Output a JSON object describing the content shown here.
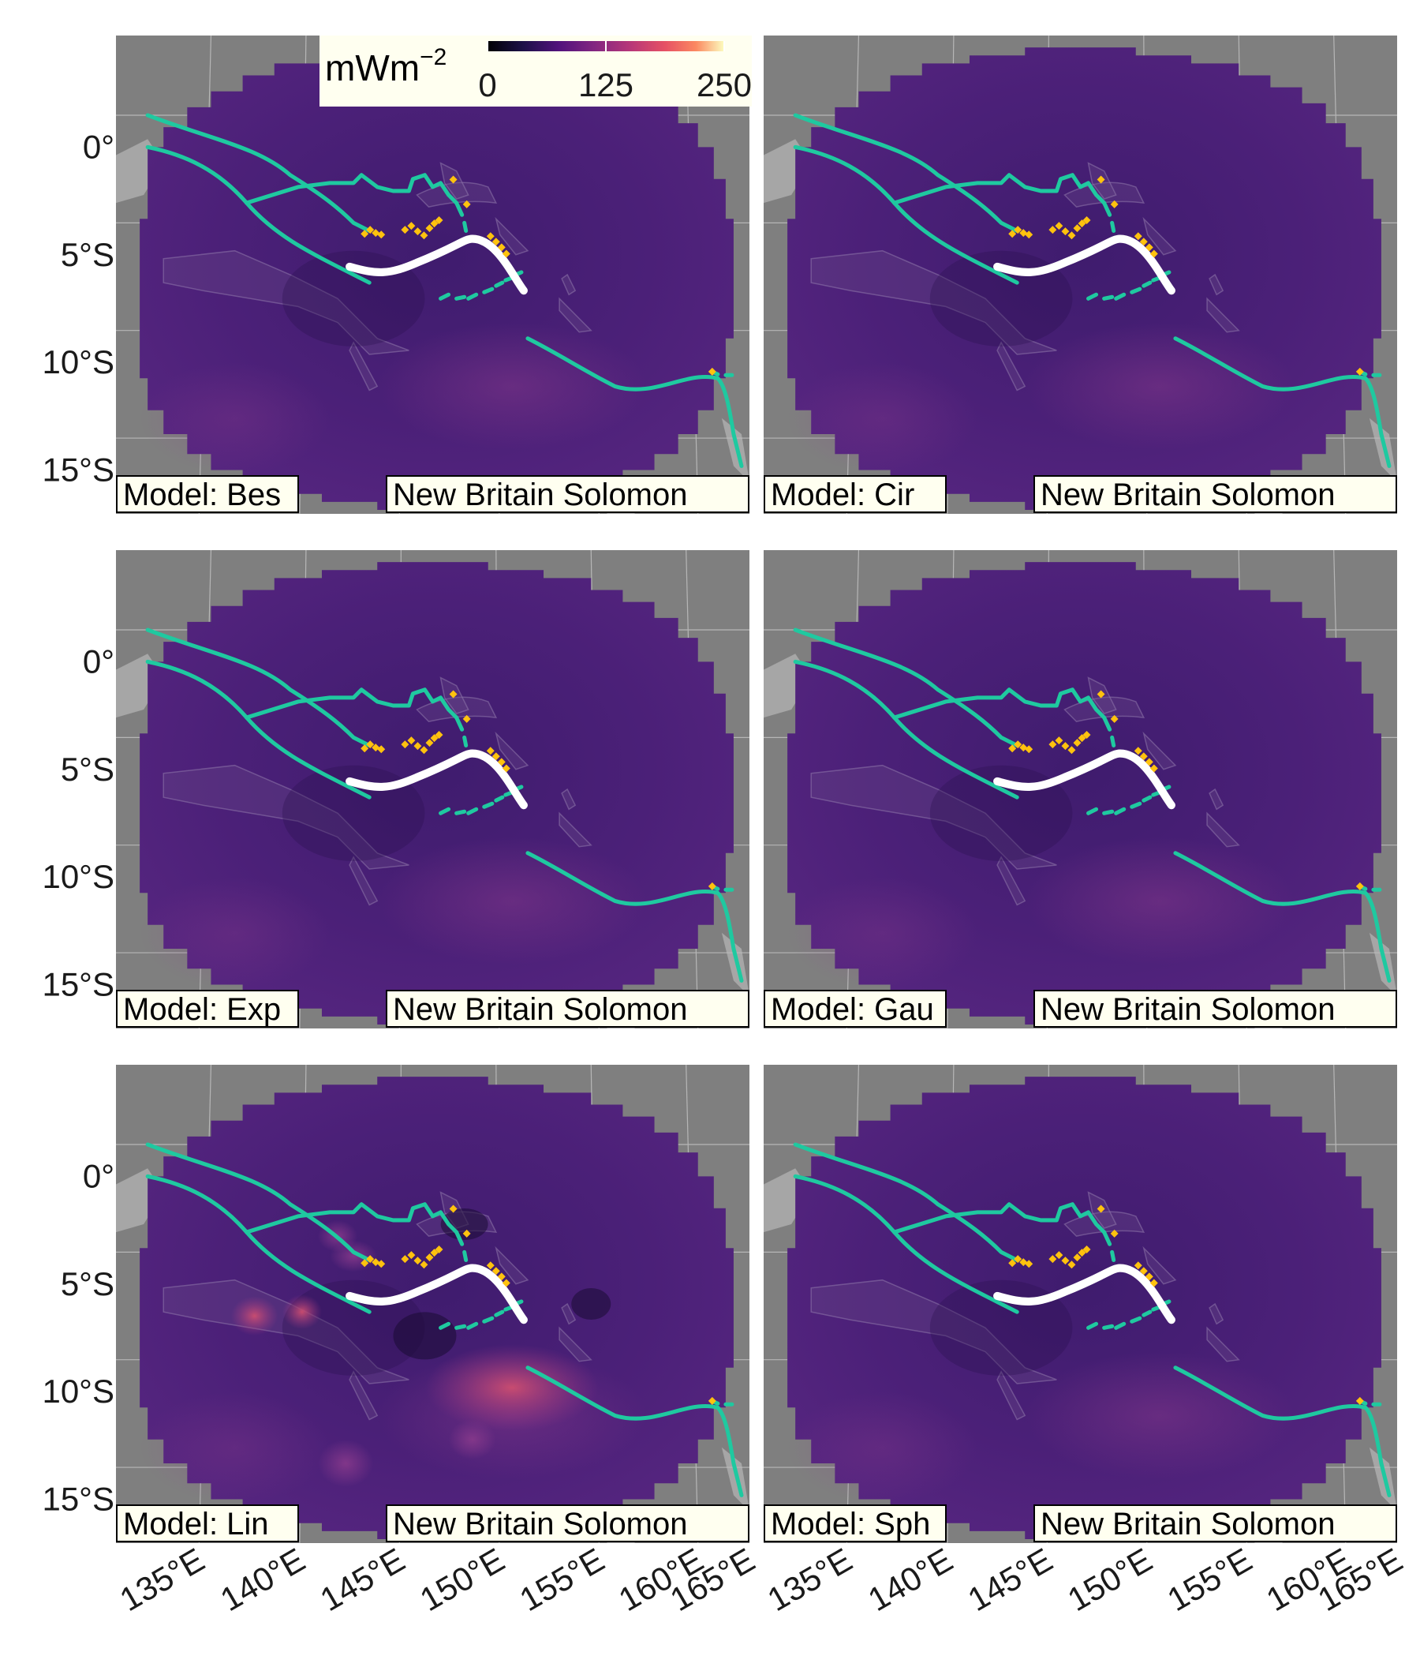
{
  "colorbar": {
    "unit": "mWm",
    "unit_exponent": "−2",
    "ticks": [
      "0",
      "125",
      "250"
    ],
    "min": 0,
    "max": 250
  },
  "axes": {
    "lat_ticks": [
      "0°",
      "5°S",
      "10°S",
      "15°S"
    ],
    "lon_ticks": [
      "135°E",
      "140°E",
      "145°E",
      "150°E",
      "155°E",
      "160°E",
      "165°E"
    ]
  },
  "panels": [
    {
      "model_label": "Model: Bes",
      "region_label": "New Britain Solomon"
    },
    {
      "model_label": "Model: Cir",
      "region_label": "New Britain Solomon"
    },
    {
      "model_label": "Model: Exp",
      "region_label": "New Britain Solomon"
    },
    {
      "model_label": "Model: Gau",
      "region_label": "New Britain Solomon"
    },
    {
      "model_label": "Model: Lin",
      "region_label": "New Britain Solomon"
    },
    {
      "model_label": "Model: Sph",
      "region_label": "New Britain Solomon"
    }
  ],
  "colors": {
    "ocean_grey": "#7f7f7f",
    "land_grey": "#a9a9a9",
    "field_purple": "#4a1f7a",
    "trench_teal": "#1fc9a0",
    "segment_white": "#ffffff",
    "volcano_yellow": "#ffc20e",
    "label_bg": "#fffff0"
  }
}
